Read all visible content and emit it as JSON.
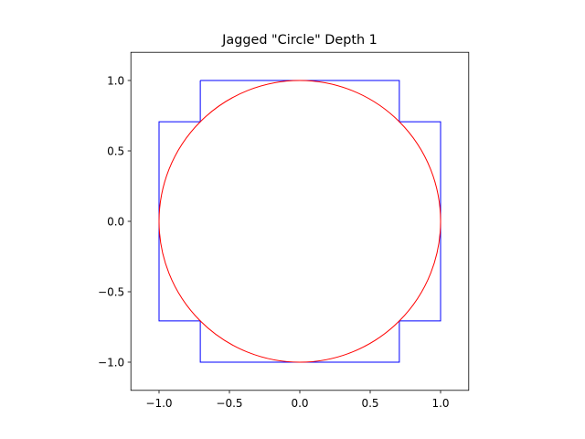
{
  "chart_data": {
    "type": "line",
    "title": "Jagged \"Circle\" Depth 1",
    "series": [
      {
        "color": "#0000ff",
        "x": [
          -0.707,
          0.707,
          0.707,
          1,
          1,
          0.707,
          0.707,
          -0.707,
          -0.707,
          -1,
          -1,
          -0.707,
          -0.707
        ],
        "y": [
          1,
          1,
          0.707,
          0.707,
          -0.707,
          -0.707,
          -1,
          -1,
          -0.707,
          -0.707,
          0.707,
          0.707,
          1
        ]
      }
    ],
    "circles": [
      {
        "color": "#ff0000",
        "center": [
          0,
          0
        ],
        "radius": 1
      }
    ],
    "xlim": [
      -1.2,
      1.2
    ],
    "ylim": [
      -1.2,
      1.2
    ],
    "xticks": [
      {
        "value": -1,
        "label": "−1.0"
      },
      {
        "value": -0.5,
        "label": "−0.5"
      },
      {
        "value": 0,
        "label": "0.0"
      },
      0.5,
      {
        "value": 1,
        "label": "1.0"
      }
    ],
    "yticks": [
      {
        "value": -1,
        "label": "−1.0"
      },
      {
        "value": -0.5,
        "label": "−0.5"
      },
      {
        "value": 0,
        "label": "0.0"
      },
      0.5,
      {
        "value": 1,
        "label": "1.0"
      }
    ]
  }
}
